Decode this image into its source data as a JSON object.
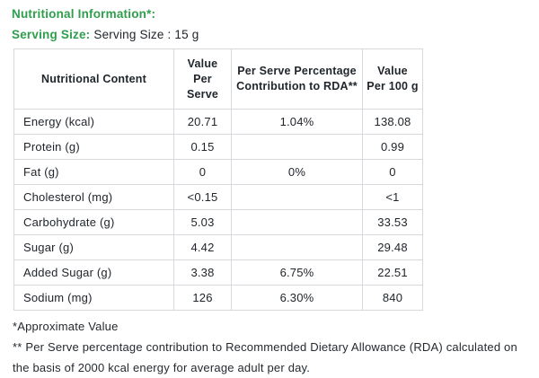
{
  "accent_green": "#2e9e4c",
  "section": {
    "title": "Nutritional Information*:",
    "serving_label": "Serving Size:",
    "serving_value": "Serving Size : 15 g"
  },
  "table": {
    "columns": [
      "Nutritional Content",
      "Value\nPer\nServe",
      "Per Serve Percentage\nContribution to RDA**",
      "Value\nPer 100 g"
    ],
    "rows": [
      {
        "name": "Energy (kcal)",
        "per_serve": "20.71",
        "rda": "1.04%",
        "per_100g": "138.08"
      },
      {
        "name": "Protein (g)",
        "per_serve": "0.15",
        "rda": "",
        "per_100g": "0.99"
      },
      {
        "name": "Fat (g)",
        "per_serve": "0",
        "rda": "0%",
        "per_100g": "0"
      },
      {
        "name": "Cholesterol (mg)",
        "per_serve": "<0.15",
        "rda": "",
        "per_100g": "<1"
      },
      {
        "name": "Carbohydrate (g)",
        "per_serve": "5.03",
        "rda": "",
        "per_100g": "33.53"
      },
      {
        "name": "Sugar (g)",
        "per_serve": "4.42",
        "rda": "",
        "per_100g": "29.48"
      },
      {
        "name": "Added Sugar (g)",
        "per_serve": "3.38",
        "rda": "6.75%",
        "per_100g": "22.51"
      },
      {
        "name": "Sodium (mg)",
        "per_serve": "126",
        "rda": "6.30%",
        "per_100g": "840"
      }
    ]
  },
  "footnotes": {
    "line1": "*Approximate Value",
    "line2": "** Per Serve percentage contribution to Recommended Dietary Allowance (RDA) calculated on",
    "line3": "the basis of 2000 kcal energy for average adult per day."
  }
}
